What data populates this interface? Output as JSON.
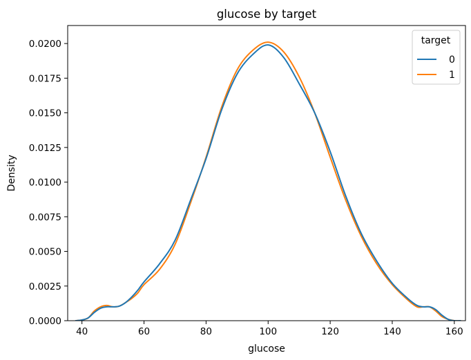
{
  "chart_data": {
    "type": "line",
    "title": "glucose by target",
    "xlabel": "glucose",
    "ylabel": "Density",
    "xlim": [
      35.4,
      163.6
    ],
    "ylim": [
      0,
      0.0213
    ],
    "xticks": [
      40,
      60,
      80,
      100,
      120,
      140,
      160
    ],
    "xtick_labels": [
      "40",
      "60",
      "80",
      "100",
      "120",
      "140",
      "160"
    ],
    "yticks": [
      0,
      0.0025,
      0.005,
      0.0075,
      0.01,
      0.0125,
      0.015,
      0.0175,
      0.02
    ],
    "ytick_labels": [
      "0.0000",
      "0.0025",
      "0.0050",
      "0.0075",
      "0.0100",
      "0.0125",
      "0.0150",
      "0.0175",
      "0.0200"
    ],
    "grid": false,
    "legend": {
      "title": "target",
      "placement": "top-right"
    },
    "series": [
      {
        "name": "0",
        "color": "#1f77b4",
        "x": [
          38,
          40,
          42,
          44,
          46,
          48,
          50,
          52,
          54,
          56,
          58,
          60,
          65,
          70,
          75,
          80,
          85,
          90,
          95,
          100,
          105,
          110,
          115,
          120,
          125,
          130,
          135,
          140,
          145,
          148,
          150,
          152,
          154,
          156,
          158,
          160,
          162
        ],
        "y": [
          0.0,
          5e-05,
          0.0002,
          0.0006,
          0.0009,
          0.001,
          0.001,
          0.00105,
          0.0013,
          0.0017,
          0.0022,
          0.0028,
          0.0041,
          0.0058,
          0.0087,
          0.0117,
          0.0152,
          0.0178,
          0.0192,
          0.0199,
          0.019,
          0.0171,
          0.015,
          0.0122,
          0.009,
          0.0063,
          0.0043,
          0.0027,
          0.0016,
          0.0011,
          0.001,
          0.001,
          0.0008,
          0.0004,
          0.0001,
          0.0,
          0.0
        ]
      },
      {
        "name": "1",
        "color": "#ff7f0e",
        "x": [
          38,
          40,
          42,
          44,
          46,
          48,
          50,
          52,
          54,
          56,
          58,
          60,
          65,
          70,
          75,
          80,
          85,
          90,
          95,
          100,
          105,
          110,
          115,
          120,
          125,
          130,
          135,
          140,
          145,
          148,
          150,
          152,
          154,
          156,
          158,
          160,
          162
        ],
        "y": [
          0.0,
          5e-05,
          0.0002,
          0.0007,
          0.001,
          0.0011,
          0.001,
          0.00105,
          0.0013,
          0.0016,
          0.002,
          0.0026,
          0.0037,
          0.0055,
          0.0085,
          0.0118,
          0.0154,
          0.0181,
          0.0195,
          0.0201,
          0.0194,
          0.0176,
          0.015,
          0.0118,
          0.0087,
          0.0061,
          0.0041,
          0.0026,
          0.0015,
          0.001,
          0.001,
          0.001,
          0.0007,
          0.0003,
          0.0001,
          0.0,
          0.0
        ]
      }
    ]
  }
}
